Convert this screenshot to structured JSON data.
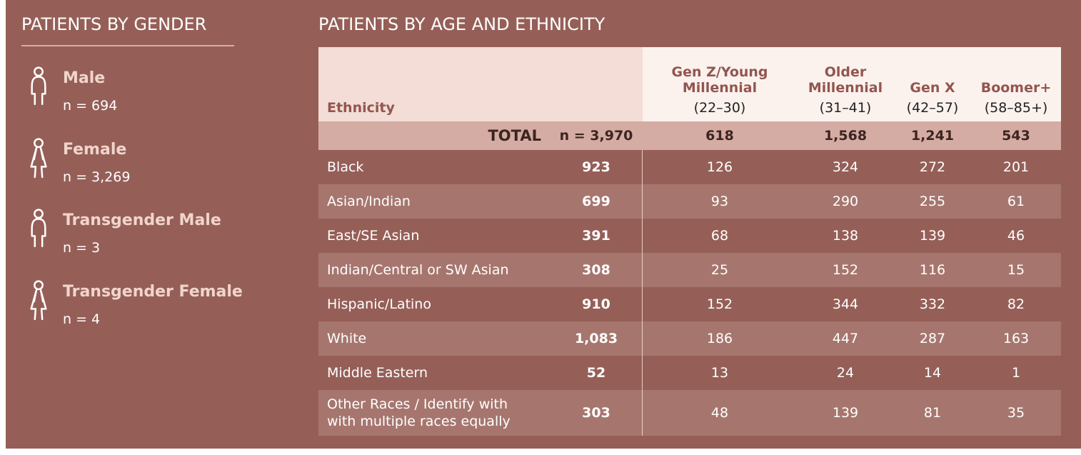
{
  "gender": {
    "title": "PATIENTS BY GENDER",
    "items": [
      {
        "label": "Male",
        "n": "n = 694",
        "icon": "male"
      },
      {
        "label": "Female",
        "n": "n = 3,269",
        "icon": "female"
      },
      {
        "label": "Transgender Male",
        "n": "n = 3",
        "icon": "male"
      },
      {
        "label": "Transgender Female",
        "n": "n = 4",
        "icon": "female"
      }
    ]
  },
  "table": {
    "title": "PATIENTS BY AGE AND ETHNICITY",
    "ethnicity_header": "Ethnicity",
    "columns": [
      {
        "name": "Gen Z/Young Millennial",
        "range": "(22–30)"
      },
      {
        "name": "Older Millennial",
        "range": "(31–41)"
      },
      {
        "name": "Gen X",
        "range": "(42–57)"
      },
      {
        "name": "Boomer+",
        "range": "(58–85+)"
      }
    ],
    "total": {
      "label": "TOTAL",
      "n": "n = 3,970",
      "values": [
        "618",
        "1,568",
        "1,241",
        "543"
      ]
    },
    "rows": [
      [
        "Black",
        "923",
        "126",
        "324",
        "272",
        "201"
      ],
      [
        "Asian/Indian",
        "699",
        "93",
        "290",
        "255",
        "61"
      ],
      [
        "East/SE Asian",
        "391",
        "68",
        "138",
        "139",
        "46"
      ],
      [
        "Indian/Central or SW Asian",
        "308",
        "25",
        "152",
        "116",
        "15"
      ],
      [
        "Hispanic/Latino",
        "910",
        "152",
        "344",
        "332",
        "82"
      ],
      [
        "White",
        "1,083",
        "186",
        "447",
        "287",
        "163"
      ],
      [
        "Middle Eastern",
        "52",
        "13",
        "24",
        "14",
        "1"
      ],
      [
        "Other Races / Identify with\nwith multiple races equally",
        "303",
        "48",
        "139",
        "81",
        "35"
      ]
    ]
  }
}
